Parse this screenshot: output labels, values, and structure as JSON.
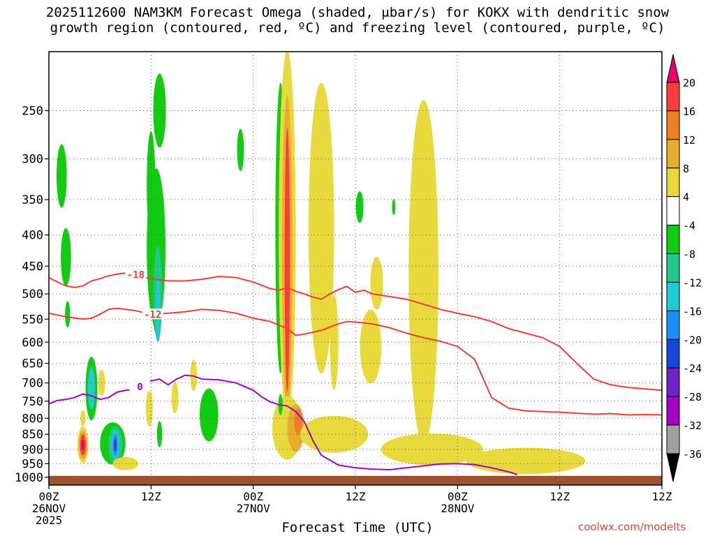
{
  "title": {
    "line1": "2025112600 NAM3KM Forecast Omega (shaded, μbar/s) for KOKX with dendritic snow",
    "line2": "growth region (contoured, red, ºC) and freezing level (contoured, purple, ºC)"
  },
  "xaxis_title": "Forecast Time (UTC)",
  "watermark": "coolwx.com/modelts",
  "chart_data": {
    "type": "heatmap",
    "title": "2025112600 NAM3KM Forecast Omega (shaded, μbar/s) for KOKX with dendritic snow growth region (contoured, red, ºC) and freezing level (contoured, purple, ºC)",
    "xlabel": "Forecast Time (UTC)",
    "ylabel": "",
    "x_unit": "hours from 2025-11-26 00Z",
    "xlim": [
      0,
      72
    ],
    "ylim": [
      1000,
      200
    ],
    "y_scale": "log-pressure",
    "grid": true,
    "x_ticks": [
      {
        "x": 0,
        "lines": [
          "00Z",
          "26NOV",
          "2025"
        ]
      },
      {
        "x": 12,
        "lines": [
          "12Z"
        ]
      },
      {
        "x": 24,
        "lines": [
          "00Z",
          "27NOV"
        ]
      },
      {
        "x": 36,
        "lines": [
          "12Z"
        ]
      },
      {
        "x": 48,
        "lines": [
          "00Z",
          "28NOV"
        ]
      },
      {
        "x": 60,
        "lines": [
          "12Z"
        ]
      }
    ],
    "y_ticks": [
      250,
      300,
      350,
      400,
      450,
      500,
      550,
      600,
      650,
      700,
      750,
      800,
      850,
      900,
      950,
      1000
    ],
    "colorbar": {
      "labels": [
        "20",
        "16",
        "12",
        "8",
        "4",
        "-4",
        "-8",
        "-12",
        "-16",
        "-20",
        "-24",
        "-28",
        "-32",
        "-36"
      ],
      "colors": [
        "#e8006f",
        "#ff3b3b",
        "#f07f23",
        "#e6ad2e",
        "#e8da3c",
        "#ffffff",
        "#11cc11",
        "#22c78c",
        "#1ecbd6",
        "#1a90ff",
        "#1846d8",
        "#6f22c8",
        "#a600c8",
        "#a0a0a0",
        "#000000"
      ]
    },
    "omega_regions": [
      {
        "x": 1.5,
        "p": 320,
        "w": 1.2,
        "h": 0.12,
        "v": -6
      },
      {
        "x": 2.0,
        "p": 435,
        "w": 1.2,
        "h": 0.11,
        "v": -6
      },
      {
        "x": 2.2,
        "p": 540,
        "w": 0.6,
        "h": 0.05,
        "v": -6
      },
      {
        "x": 4.0,
        "p": 800,
        "w": 0.6,
        "h": 0.03,
        "v": 6
      },
      {
        "x": 5.0,
        "p": 715,
        "w": 1.4,
        "h": 0.12,
        "v": -6
      },
      {
        "x": 5.0,
        "p": 715,
        "w": 0.8,
        "h": 0.08,
        "v": -13
      },
      {
        "x": 6.2,
        "p": 700,
        "w": 0.8,
        "h": 0.05,
        "v": 6
      },
      {
        "x": 4.0,
        "p": 885,
        "w": 1.3,
        "h": 0.07,
        "v": 6
      },
      {
        "x": 4.0,
        "p": 885,
        "w": 1.0,
        "h": 0.055,
        "v": 10
      },
      {
        "x": 4.0,
        "p": 885,
        "w": 0.7,
        "h": 0.04,
        "v": 17
      },
      {
        "x": 4.0,
        "p": 885,
        "w": 0.35,
        "h": 0.02,
        "v": 22
      },
      {
        "x": 7.5,
        "p": 880,
        "w": 3.0,
        "h": 0.08,
        "v": -6
      },
      {
        "x": 7.8,
        "p": 885,
        "w": 1.6,
        "h": 0.07,
        "v": -10
      },
      {
        "x": 7.8,
        "p": 885,
        "w": 1.0,
        "h": 0.055,
        "v": -14
      },
      {
        "x": 7.8,
        "p": 885,
        "w": 0.6,
        "h": 0.04,
        "v": -19
      },
      {
        "x": 7.8,
        "p": 885,
        "w": 0.3,
        "h": 0.025,
        "v": -26
      },
      {
        "x": 9.0,
        "p": 950,
        "w": 3.0,
        "h": 0.025,
        "v": 6
      },
      {
        "x": 12.0,
        "p": 330,
        "w": 1.0,
        "h": 0.2,
        "v": -6
      },
      {
        "x": 13.0,
        "p": 250,
        "w": 1.5,
        "h": 0.14,
        "v": -6
      },
      {
        "x": 12.6,
        "p": 420,
        "w": 2.2,
        "h": 0.3,
        "v": -6
      },
      {
        "x": 12.7,
        "p": 460,
        "w": 1.5,
        "h": 0.24,
        "v": -8
      },
      {
        "x": 12.8,
        "p": 500,
        "w": 1.0,
        "h": 0.18,
        "v": -11
      },
      {
        "x": 12.8,
        "p": 530,
        "w": 0.5,
        "h": 0.12,
        "v": -14
      },
      {
        "x": 11.8,
        "p": 770,
        "w": 0.8,
        "h": 0.07,
        "v": 6
      },
      {
        "x": 13.0,
        "p": 850,
        "w": 0.6,
        "h": 0.05,
        "v": -6
      },
      {
        "x": 14.8,
        "p": 740,
        "w": 0.8,
        "h": 0.06,
        "v": 6
      },
      {
        "x": 17.0,
        "p": 680,
        "w": 0.8,
        "h": 0.06,
        "v": 6
      },
      {
        "x": 18.8,
        "p": 790,
        "w": 2.2,
        "h": 0.1,
        "v": -6
      },
      {
        "x": 22.5,
        "p": 290,
        "w": 0.8,
        "h": 0.08,
        "v": -6
      },
      {
        "x": 27.2,
        "p": 390,
        "w": 1.2,
        "h": 0.55,
        "v": -6
      },
      {
        "x": 28.0,
        "p": 400,
        "w": 2.0,
        "h": 0.7,
        "v": 6
      },
      {
        "x": 28.0,
        "p": 430,
        "w": 1.2,
        "h": 0.6,
        "v": 10
      },
      {
        "x": 28.0,
        "p": 440,
        "w": 0.6,
        "h": 0.5,
        "v": 16
      },
      {
        "x": 28.0,
        "p": 830,
        "w": 3.5,
        "h": 0.12,
        "v": 6
      },
      {
        "x": 29.0,
        "p": 830,
        "w": 2.0,
        "h": 0.09,
        "v": 10
      },
      {
        "x": 29.3,
        "p": 810,
        "w": 1.0,
        "h": 0.05,
        "v": 14
      },
      {
        "x": 27.2,
        "p": 760,
        "w": 0.5,
        "h": 0.04,
        "v": -6
      },
      {
        "x": 32.0,
        "p": 390,
        "w": 3.0,
        "h": 0.55,
        "v": 6
      },
      {
        "x": 33.5,
        "p": 600,
        "w": 1.0,
        "h": 0.18,
        "v": 6
      },
      {
        "x": 33.5,
        "p": 850,
        "w": 8.0,
        "h": 0.07,
        "v": 6
      },
      {
        "x": 36.5,
        "p": 360,
        "w": 0.9,
        "h": 0.06,
        "v": -6
      },
      {
        "x": 37.8,
        "p": 610,
        "w": 2.5,
        "h": 0.14,
        "v": 6
      },
      {
        "x": 38.5,
        "p": 480,
        "w": 1.5,
        "h": 0.1,
        "v": 6
      },
      {
        "x": 40.5,
        "p": 360,
        "w": 0.4,
        "h": 0.03,
        "v": -6
      },
      {
        "x": 44.0,
        "p": 460,
        "w": 3.5,
        "h": 0.65,
        "v": 6
      },
      {
        "x": 45.0,
        "p": 900,
        "w": 12.0,
        "h": 0.06,
        "v": 6
      },
      {
        "x": 56.0,
        "p": 940,
        "w": 14.0,
        "h": 0.05,
        "v": 6
      }
    ],
    "series": [
      {
        "name": "-18",
        "color": "#ee3b36",
        "label_x": 10.2,
        "x": [
          0,
          1,
          2,
          3,
          4,
          5,
          6,
          7,
          8,
          9,
          10,
          12,
          14,
          16,
          18,
          20,
          22,
          24,
          26,
          27,
          28,
          29,
          30,
          31,
          32,
          33,
          34,
          35,
          36,
          37,
          38,
          40,
          42,
          44,
          46,
          48,
          50,
          52,
          54,
          56,
          58,
          60,
          62,
          64,
          66,
          68,
          70,
          72
        ],
        "y": [
          470,
          478,
          485,
          488,
          485,
          476,
          472,
          467,
          464,
          462,
          465,
          472,
          476,
          476,
          473,
          468,
          470,
          478,
          490,
          493,
          488,
          495,
          500,
          506,
          510,
          500,
          492,
          486,
          497,
          493,
          500,
          505,
          510,
          520,
          530,
          538,
          545,
          555,
          570,
          580,
          590,
          610,
          650,
          690,
          705,
          712,
          716,
          720
        ]
      },
      {
        "name": "-12",
        "color": "#ee3b36",
        "label_x": 12.2,
        "x": [
          0,
          2,
          4,
          5,
          6,
          7,
          8,
          10,
          12,
          14,
          16,
          18,
          20,
          22,
          24,
          26,
          28,
          29,
          30,
          31,
          32,
          34,
          35,
          36,
          38,
          40,
          42,
          44,
          46,
          48,
          50,
          52,
          54,
          56,
          58,
          60,
          62,
          64,
          66,
          68,
          70,
          72
        ],
        "y": [
          538,
          545,
          550,
          548,
          540,
          530,
          528,
          532,
          540,
          538,
          535,
          530,
          532,
          538,
          548,
          555,
          570,
          585,
          582,
          578,
          574,
          560,
          555,
          556,
          560,
          568,
          580,
          590,
          598,
          610,
          640,
          740,
          770,
          778,
          780,
          782,
          785,
          788,
          786,
          790,
          789,
          790
        ]
      },
      {
        "name": "0",
        "color": "#9e00c8",
        "label_x": 10.7,
        "x": [
          0,
          1,
          2,
          3,
          4,
          5,
          6,
          7,
          8,
          9,
          10,
          11,
          12,
          13,
          14,
          15,
          16,
          17,
          18,
          20,
          22,
          24,
          25,
          26,
          27,
          28,
          29,
          30,
          31,
          32,
          34,
          36,
          38,
          40,
          42,
          44,
          46,
          48,
          50,
          52,
          54,
          55
        ],
        "y": [
          758,
          748,
          745,
          740,
          730,
          735,
          745,
          740,
          725,
          720,
          718,
          710,
          695,
          690,
          705,
          690,
          680,
          682,
          690,
          692,
          700,
          720,
          738,
          752,
          760,
          764,
          780,
          810,
          870,
          920,
          955,
          965,
          970,
          972,
          965,
          958,
          951,
          950,
          953,
          965,
          980,
          990
        ]
      }
    ]
  }
}
